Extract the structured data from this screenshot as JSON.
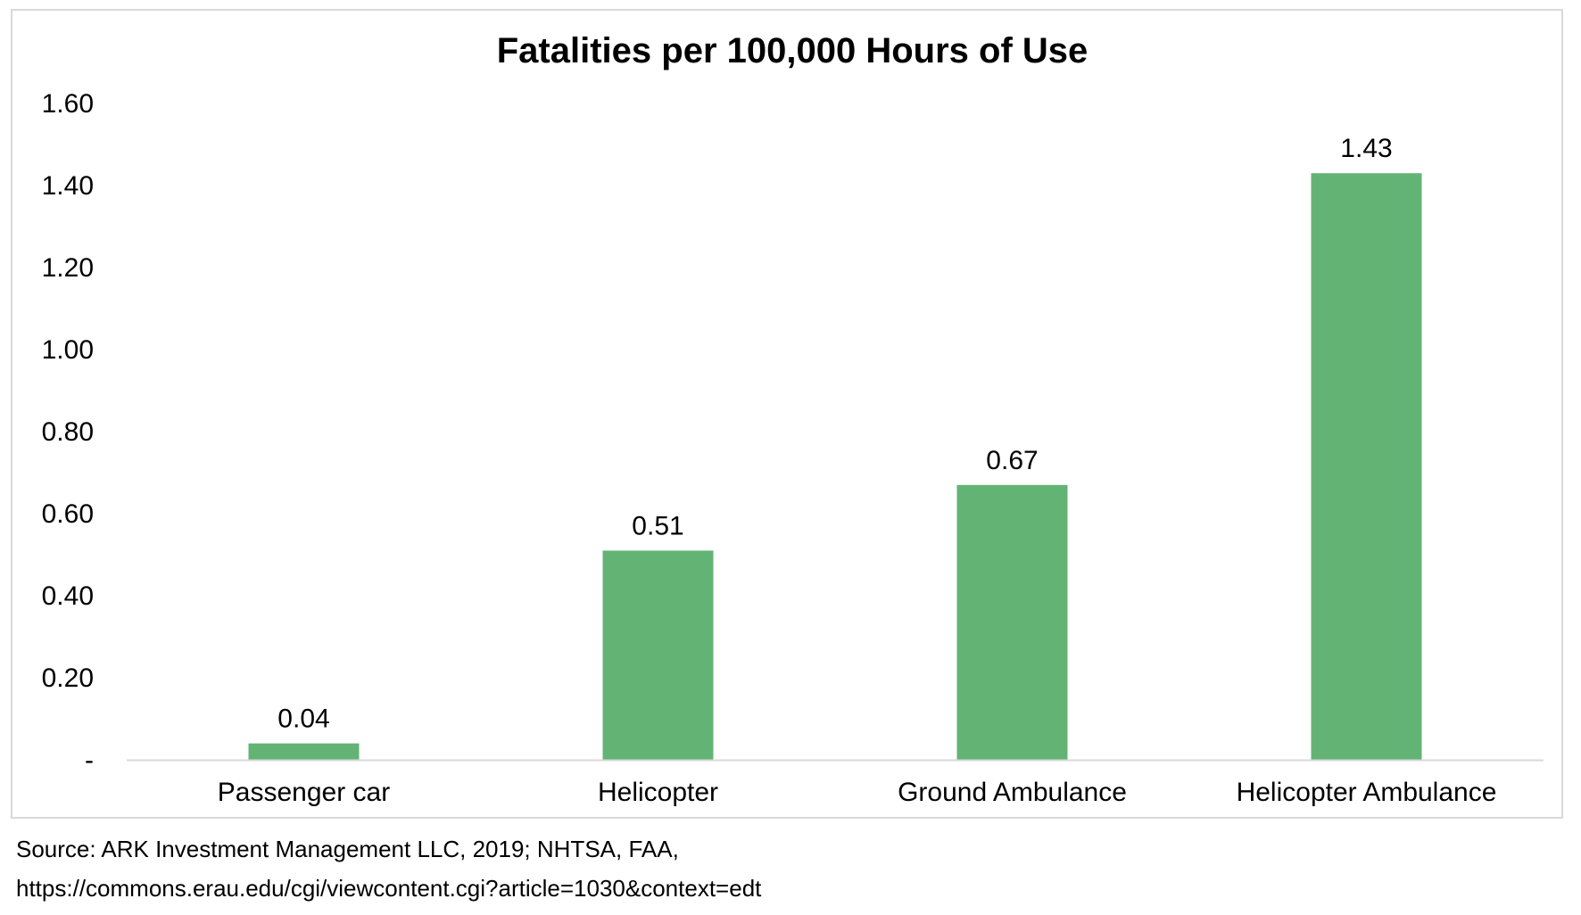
{
  "chart_data": {
    "type": "bar",
    "title": "Fatalities per 100,000 Hours of Use",
    "categories": [
      "Passenger car",
      "Helicopter",
      "Ground Ambulance",
      "Helicopter Ambulance"
    ],
    "values": [
      0.04,
      0.51,
      0.67,
      1.43
    ],
    "data_labels": [
      "0.04",
      "0.51",
      "0.67",
      "1.43"
    ],
    "ylim": [
      0,
      1.6
    ],
    "yticks": [
      0,
      0.2,
      0.4,
      0.6,
      0.8,
      1.0,
      1.2,
      1.4,
      1.6
    ],
    "ytick_labels": [
      "-",
      "0.20",
      "0.40",
      "0.60",
      "0.80",
      "1.00",
      "1.20",
      "1.40",
      "1.60"
    ],
    "bar_color": "#63b375",
    "axis_color": "#d9d9d9",
    "grid": false,
    "legend": "none"
  },
  "source": {
    "line1": "Source: ARK Investment Management LLC, 2019; NHTSA, FAA,",
    "line2": "https://commons.erau.edu/cgi/viewcontent.cgi?article=1030&context=edt"
  }
}
